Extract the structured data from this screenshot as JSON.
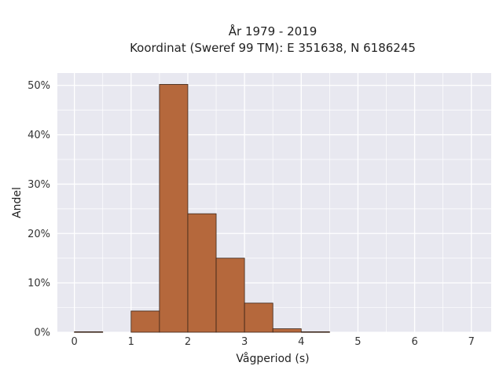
{
  "chart_data": {
    "type": "bar",
    "title_line1": "År 1979 - 2019",
    "title_line2": "Koordinat (Sweref 99 TM): E 351638, N 6186245",
    "xlabel": "Vågperiod (s)",
    "ylabel": "Andel",
    "xlim": [
      -0.3,
      7.35
    ],
    "ylim": [
      0,
      0.525
    ],
    "x_ticks": [
      0,
      1,
      2,
      3,
      4,
      5,
      6,
      7
    ],
    "x_tick_labels": [
      "0",
      "1",
      "2",
      "3",
      "4",
      "5",
      "6",
      "7"
    ],
    "y_ticks": [
      0,
      0.1,
      0.2,
      0.3,
      0.4,
      0.5
    ],
    "y_tick_labels": [
      "0%",
      "10%",
      "20%",
      "30%",
      "40%",
      "50%"
    ],
    "bin_width": 0.5,
    "bins": [
      {
        "x0": 0.0,
        "x1": 0.5,
        "value": 0.001
      },
      {
        "x0": 0.5,
        "x1": 1.0,
        "value": 0.0
      },
      {
        "x0": 1.0,
        "x1": 1.5,
        "value": 0.043
      },
      {
        "x0": 1.5,
        "x1": 2.0,
        "value": 0.502
      },
      {
        "x0": 2.0,
        "x1": 2.5,
        "value": 0.24
      },
      {
        "x0": 2.5,
        "x1": 3.0,
        "value": 0.15
      },
      {
        "x0": 3.0,
        "x1": 3.5,
        "value": 0.059
      },
      {
        "x0": 3.5,
        "x1": 4.0,
        "value": 0.007
      },
      {
        "x0": 4.0,
        "x1": 4.5,
        "value": 0.001
      }
    ],
    "grid": true,
    "colors": {
      "bar_fill": "#b5683c",
      "bar_edge": "#3a2418",
      "plot_background": "#e8e8f0",
      "grid": "#ffffff"
    }
  }
}
